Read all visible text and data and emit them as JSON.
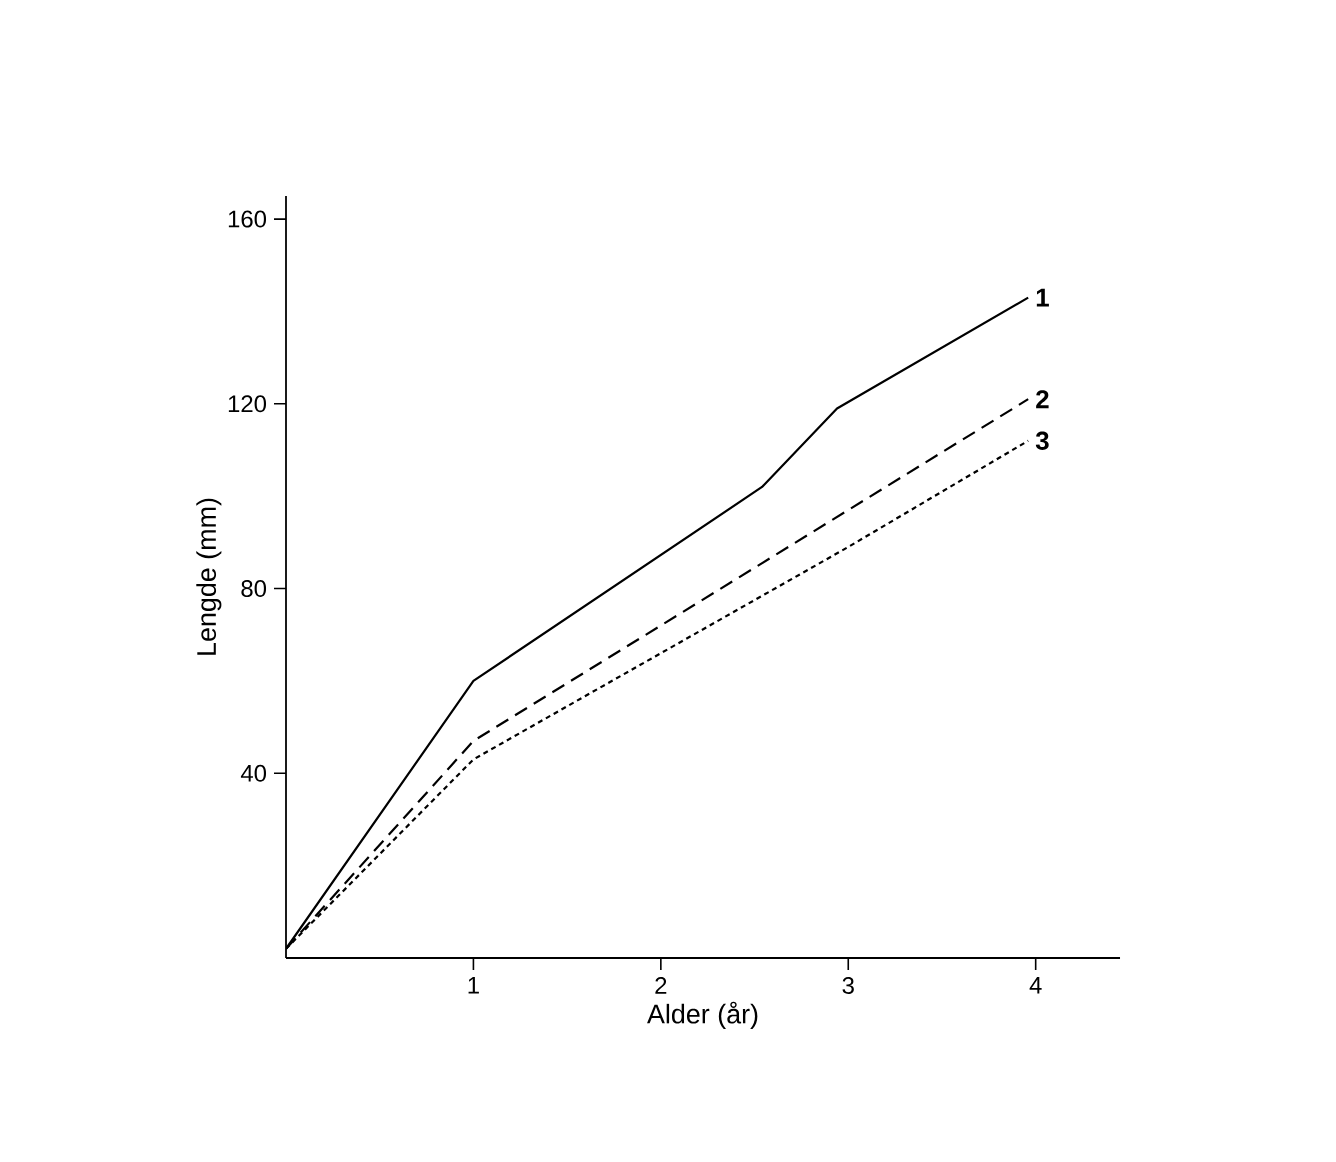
{
  "chart_data": {
    "type": "line",
    "xlabel": "Alder (år)",
    "ylabel": "Lengde (mm)",
    "xlim": [
      0,
      4.45
    ],
    "ylim": [
      0,
      165
    ],
    "xticks": [
      1,
      2,
      3,
      4
    ],
    "yticks": [
      40,
      80,
      120,
      160
    ],
    "grid": false,
    "legend": false,
    "marker": "none",
    "series": [
      {
        "name": "1",
        "color": "#000000",
        "line_style": "solid",
        "x": [
          0,
          1,
          2.54,
          2.94,
          3.96
        ],
        "values": [
          2,
          60,
          102,
          119,
          143
        ]
      },
      {
        "name": "2",
        "color": "#000000",
        "line_style": "dashed",
        "x": [
          0,
          1,
          2,
          3,
          3.96
        ],
        "values": [
          2,
          47,
          72,
          97,
          121
        ]
      },
      {
        "name": "3",
        "color": "#000000",
        "line_style": "dotted",
        "x": [
          0,
          1,
          2,
          3,
          3.96
        ],
        "values": [
          2,
          43,
          66,
          89,
          112
        ]
      }
    ]
  }
}
